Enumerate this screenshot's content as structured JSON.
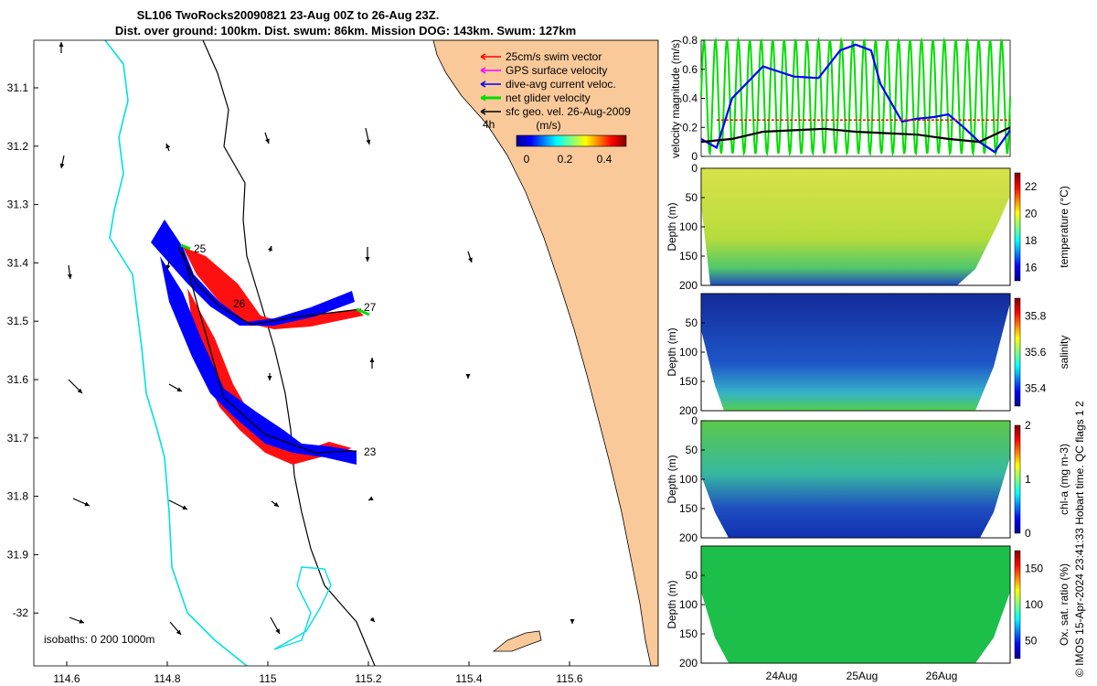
{
  "titles": {
    "line1": "SL106 TwoRocks20090821 23-Aug 00Z to 26-Aug 23Z.",
    "line2": "Dist. over ground: 100km. Dist. swum: 86km. Mission DOG: 143km. Swum: 127km"
  },
  "map": {
    "x_ticks": [
      "114.6",
      "114.8",
      "115",
      "115.2",
      "115.4",
      "115.6"
    ],
    "y_ticks": [
      "31.1",
      "31.2",
      "31.3",
      "31.4",
      "31.5",
      "31.6",
      "31.7",
      "31.8",
      "31.9",
      "-32"
    ],
    "legend": [
      {
        "label": "25cm/s swim vector",
        "color": "#ff0000"
      },
      {
        "label": "GPS surface velocity",
        "color": "#ff00ff"
      },
      {
        "label": "dive-avg current veloc.",
        "color": "#0000ff"
      },
      {
        "label": "net glider velocity",
        "color": "#00dd00"
      },
      {
        "label": "sfc geo. vel. 26-Aug-2009",
        "color": "#000000"
      }
    ],
    "scale_label": "4h",
    "colorbar_title": "(m/s)",
    "colorbar_ticks": [
      "0",
      "0.2",
      "0.4"
    ],
    "day_labels": [
      "25",
      "26",
      "27",
      "23"
    ],
    "isobaths_label": "isobaths: 0   200   1000m",
    "land_color": "#f9c99a",
    "isobath_color": "#00e0e0"
  },
  "chart_data": [
    {
      "type": "line",
      "title": "",
      "ylabel": "velocity magnitude (m/s)",
      "ylim": [
        0,
        0.8
      ],
      "y_ticks": [
        "0",
        "0.2",
        "0.4",
        "0.6",
        "0.8"
      ],
      "series": [
        {
          "name": "dive-avg current veloc.",
          "color": "#0000ff",
          "x": [
            0,
            0.05,
            0.1,
            0.2,
            0.3,
            0.38,
            0.45,
            0.5,
            0.55,
            0.58,
            0.65,
            0.7,
            0.75,
            0.8,
            0.85,
            0.9,
            0.95,
            1.0
          ],
          "y": [
            0.12,
            0.06,
            0.4,
            0.62,
            0.55,
            0.54,
            0.73,
            0.77,
            0.73,
            0.5,
            0.24,
            0.26,
            0.27,
            0.29,
            0.2,
            0.1,
            0.03,
            0.18
          ]
        },
        {
          "name": "sfc geo. vel.",
          "color": "#000000",
          "x": [
            0,
            0.1,
            0.2,
            0.3,
            0.4,
            0.5,
            0.6,
            0.7,
            0.8,
            0.9,
            1.0
          ],
          "y": [
            0.1,
            0.12,
            0.17,
            0.18,
            0.19,
            0.17,
            0.16,
            0.15,
            0.12,
            0.1,
            0.2
          ]
        },
        {
          "name": "25cm/s swim vector",
          "color": "#ff0000",
          "x": [
            0.05,
            0.17,
            0.27,
            0.38,
            0.55,
            0.58,
            0.7,
            0.85,
            1.0
          ],
          "y": [
            0.25,
            0.25,
            0.25,
            0.25,
            0.25,
            0.25,
            0.25,
            0.25,
            0.25
          ]
        }
      ],
      "oscillation_series": {
        "name": "net glider velocity",
        "color": "#00dd00",
        "min": 0.02,
        "max": 0.8,
        "cycles": 27
      }
    },
    {
      "type": "heatmap",
      "ylabel": "Depth (m)",
      "y_ticks": [
        "0",
        "50",
        "100",
        "150",
        "200"
      ],
      "colorbar_label": "temperature (°C)",
      "colorbar_ticks": [
        "16",
        "18",
        "20",
        "22"
      ]
    },
    {
      "type": "heatmap",
      "ylabel": "Depth (m)",
      "y_ticks": [
        "50",
        "100",
        "150",
        "200"
      ],
      "colorbar_label": "salinity",
      "colorbar_ticks": [
        "35.4",
        "35.6",
        "35.8"
      ]
    },
    {
      "type": "heatmap",
      "ylabel": "Depth (m)",
      "y_ticks": [
        "0",
        "50",
        "100",
        "150",
        "200"
      ],
      "colorbar_label": "chl-a (mg m-3)",
      "colorbar_ticks": [
        "0",
        "1",
        "2"
      ]
    },
    {
      "type": "heatmap",
      "ylabel": "Depth (m)",
      "y_ticks": [
        "50",
        "100",
        "150",
        "200"
      ],
      "colorbar_label": "Ox. sat. ratio (%)",
      "colorbar_ticks": [
        "50",
        "100",
        "150"
      ],
      "x_ticks": [
        "24Aug",
        "25Aug",
        "26Aug"
      ]
    }
  ],
  "side_note": "© IMOS 15-Apr-2024 23:41:33 Hobart time. QC flags 1  2"
}
